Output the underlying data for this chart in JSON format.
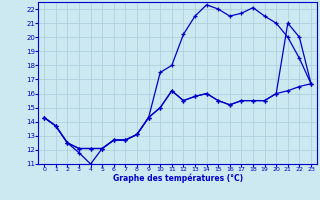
{
  "xlabel": "Graphe des températures (°C)",
  "background_color": "#cce8f0",
  "grid_color": "#aaccdd",
  "line_color": "#0000cc",
  "xlim": [
    -0.5,
    23.5
  ],
  "ylim": [
    11,
    22.5
  ],
  "xticks": [
    0,
    1,
    2,
    3,
    4,
    5,
    6,
    7,
    8,
    9,
    10,
    11,
    12,
    13,
    14,
    15,
    16,
    17,
    18,
    19,
    20,
    21,
    22,
    23
  ],
  "yticks": [
    11,
    12,
    13,
    14,
    15,
    16,
    17,
    18,
    19,
    20,
    21,
    22
  ],
  "line1_x": [
    0,
    1,
    2,
    3,
    4,
    5,
    6,
    7,
    8,
    9,
    10,
    11,
    12,
    13,
    14,
    15,
    16,
    17,
    18,
    19,
    20,
    21,
    22,
    23
  ],
  "line1_y": [
    14.3,
    13.7,
    12.5,
    11.8,
    11.0,
    12.1,
    12.7,
    12.7,
    13.1,
    14.3,
    17.5,
    18.0,
    20.2,
    21.5,
    22.3,
    22.0,
    21.5,
    21.7,
    22.1,
    21.5,
    21.0,
    20.0,
    18.5,
    16.7
  ],
  "line2_x": [
    0,
    1,
    2,
    3,
    4,
    5,
    6,
    7,
    8,
    9,
    10,
    11,
    12,
    13,
    14,
    15,
    16,
    17,
    18,
    19,
    20,
    21,
    22,
    23
  ],
  "line2_y": [
    14.3,
    13.7,
    12.5,
    12.1,
    12.1,
    12.1,
    12.7,
    12.7,
    13.1,
    14.3,
    15.0,
    16.2,
    15.5,
    15.8,
    16.0,
    15.5,
    15.2,
    15.5,
    15.5,
    15.5,
    16.0,
    21.0,
    20.0,
    16.7
  ],
  "line3_x": [
    0,
    1,
    2,
    3,
    4,
    5,
    6,
    7,
    8,
    9,
    10,
    11,
    12,
    13,
    14,
    15,
    16,
    17,
    18,
    19,
    20,
    21,
    22,
    23
  ],
  "line3_y": [
    14.3,
    13.7,
    12.5,
    12.1,
    12.1,
    12.1,
    12.7,
    12.7,
    13.1,
    14.3,
    15.0,
    16.2,
    15.5,
    15.8,
    16.0,
    15.5,
    15.2,
    15.5,
    15.5,
    15.5,
    16.0,
    16.2,
    16.5,
    16.7
  ]
}
